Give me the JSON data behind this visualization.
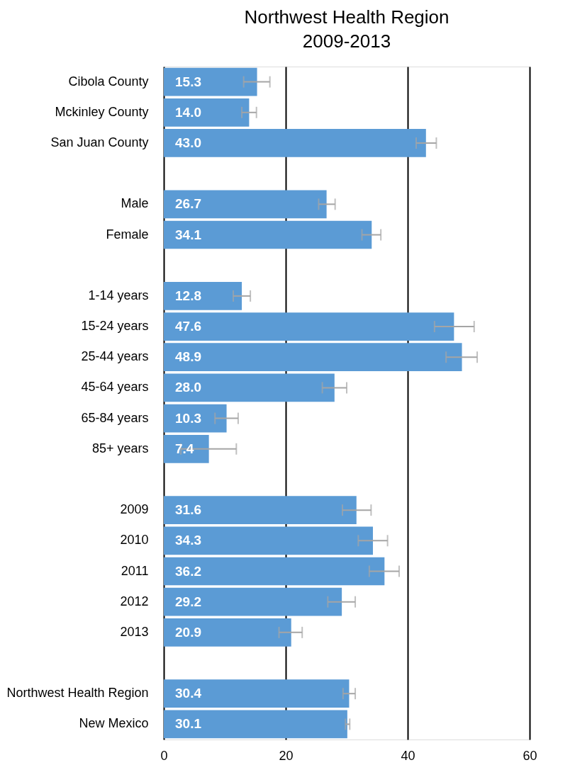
{
  "chart_data": {
    "type": "bar",
    "orientation": "horizontal",
    "title": "Northwest Health Region",
    "subtitle": "2009-2013",
    "categories": [
      "Cibola County",
      "Mckinley County",
      "San Juan County",
      null,
      "Male",
      "Female",
      null,
      "1-14 years",
      "15-24 years",
      "25-44 years",
      "45-64 years",
      "65-84 years",
      "85+ years",
      null,
      "2009",
      "2010",
      "2011",
      "2012",
      "2013",
      null,
      "Northwest Health Region",
      "New Mexico"
    ],
    "values": [
      15.3,
      14.0,
      43.0,
      null,
      26.7,
      34.1,
      null,
      12.8,
      47.6,
      48.9,
      28.0,
      10.3,
      7.4,
      null,
      31.6,
      34.3,
      36.2,
      29.2,
      20.9,
      null,
      30.4,
      30.1
    ],
    "value_labels": [
      "15.3",
      "14.0",
      "43.0",
      null,
      "26.7",
      "34.1",
      null,
      "12.8",
      "47.6",
      "48.9",
      "28.0",
      "10.3",
      "7.4",
      null,
      "31.6",
      "34.3",
      "36.2",
      "29.2",
      "20.9",
      null,
      "30.4",
      "30.1"
    ],
    "errors": [
      [
        13.1,
        17.4
      ],
      [
        12.8,
        15.2
      ],
      [
        41.4,
        44.7
      ],
      null,
      [
        25.4,
        28.1
      ],
      [
        32.5,
        35.6
      ],
      null,
      [
        11.4,
        14.2
      ],
      [
        44.4,
        50.9
      ],
      [
        46.3,
        51.4
      ],
      [
        26.0,
        30.0
      ],
      [
        8.4,
        12.2
      ],
      [
        2.8,
        11.9
      ],
      null,
      [
        29.3,
        34.0
      ],
      [
        31.9,
        36.7
      ],
      [
        33.7,
        38.6
      ],
      [
        26.9,
        31.4
      ],
      [
        18.9,
        22.7
      ],
      null,
      [
        29.4,
        31.4
      ],
      [
        29.8,
        30.5
      ]
    ],
    "color": "#5b9bd5",
    "xlim": [
      0,
      60
    ],
    "xticks": [
      0,
      20,
      40,
      60
    ],
    "grid": "x"
  }
}
